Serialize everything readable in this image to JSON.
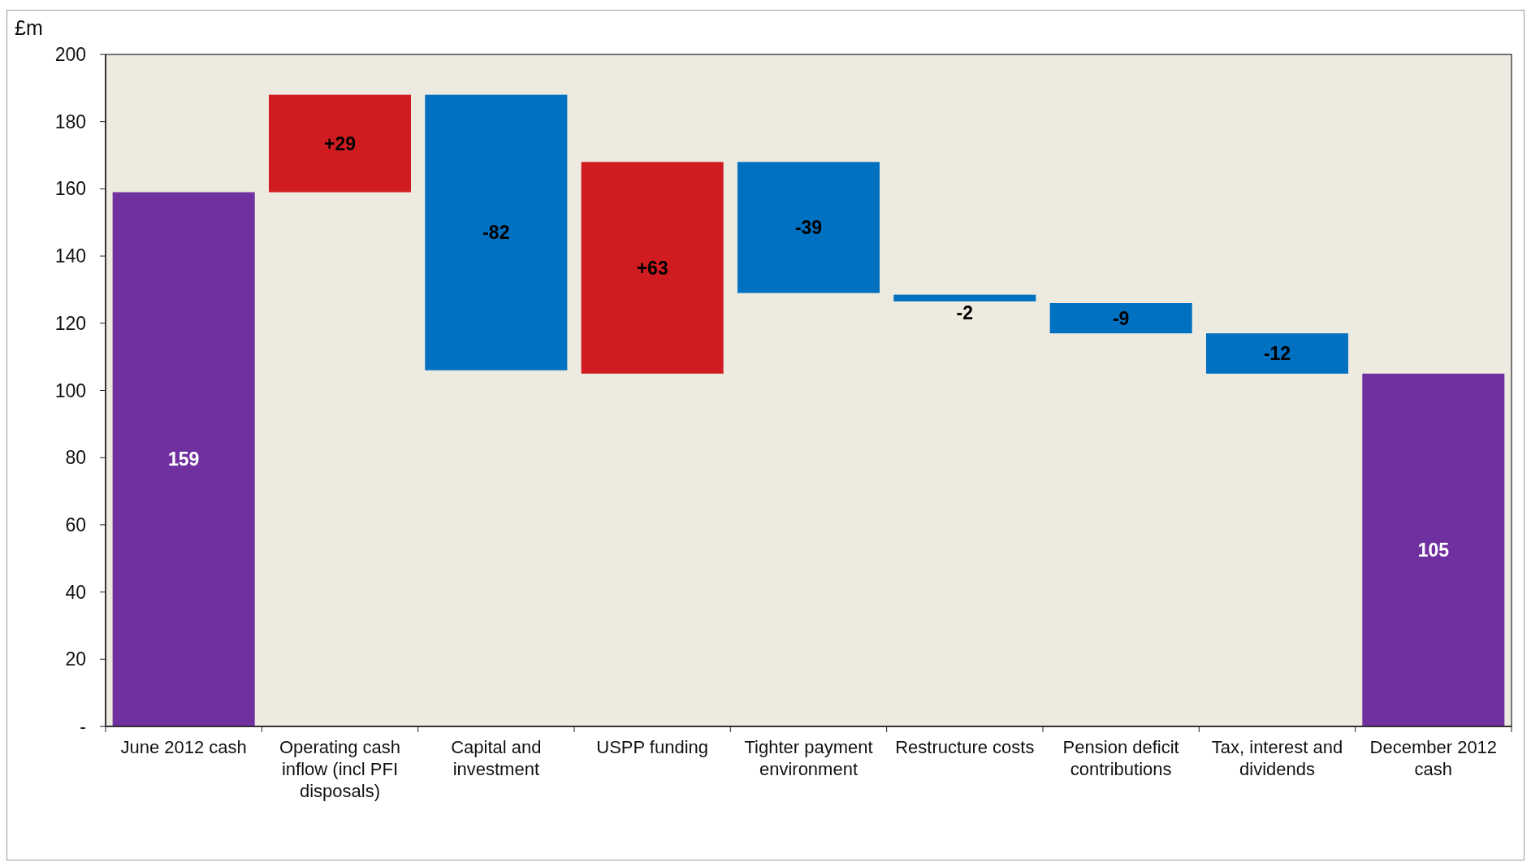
{
  "chart_data": {
    "type": "bar",
    "ylabel": "£m",
    "categories": [
      "June 2012 cash",
      "Operating cash inflow (incl PFI disposals)",
      "Capital and investment",
      "USPP funding",
      "Tighter payment environment",
      "Restructure costs",
      "Pension deficit contributions",
      "Tax, interest and dividends",
      "December 2012 cash"
    ],
    "values": [
      159,
      29,
      -82,
      63,
      -39,
      -2,
      -9,
      -12,
      105
    ],
    "base": [
      0,
      159,
      188,
      105,
      168,
      128.5,
      126,
      117,
      0
    ],
    "colors": [
      "#7030a0",
      "#d01c20",
      "#0070c0",
      "#d01c20",
      "#0070c0",
      "#0070c0",
      "#0070c0",
      "#0070c0",
      "#7030a0"
    ],
    "value_labels": [
      "159",
      "+29",
      "-82",
      "+63",
      "-39",
      "-2",
      "-9",
      "-12",
      "105"
    ],
    "ylim": [
      0,
      200
    ],
    "yticks": [
      {
        "value": 0,
        "label": "-"
      },
      20,
      40,
      60,
      80,
      100,
      120,
      140,
      160,
      180,
      200
    ],
    "grid": false
  }
}
